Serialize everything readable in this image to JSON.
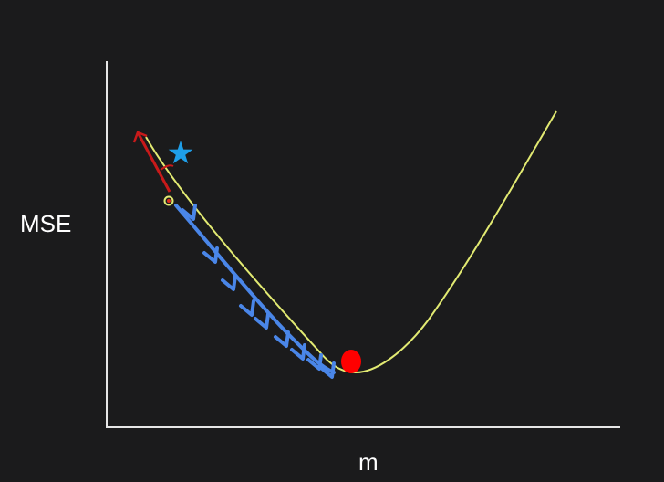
{
  "diagram": {
    "title": "",
    "ylabel": "MSE",
    "xlabel": "m",
    "colors": {
      "background": "#1b1b1c",
      "axis": "#e6e6e6",
      "curve": "#e2ea72",
      "descent_path": "#4a86e8",
      "minimum_point": "#ff0000",
      "start_star": "#1e9ee8",
      "slope_arrow": "#c81a1a",
      "marker_ring": "#e2ea72",
      "marker_dot": "#e03020"
    },
    "icons": {
      "start": "star-icon",
      "minimum": "filled-circle-icon",
      "step": "chevron-arrow-icon"
    },
    "descent_steps": 9
  }
}
